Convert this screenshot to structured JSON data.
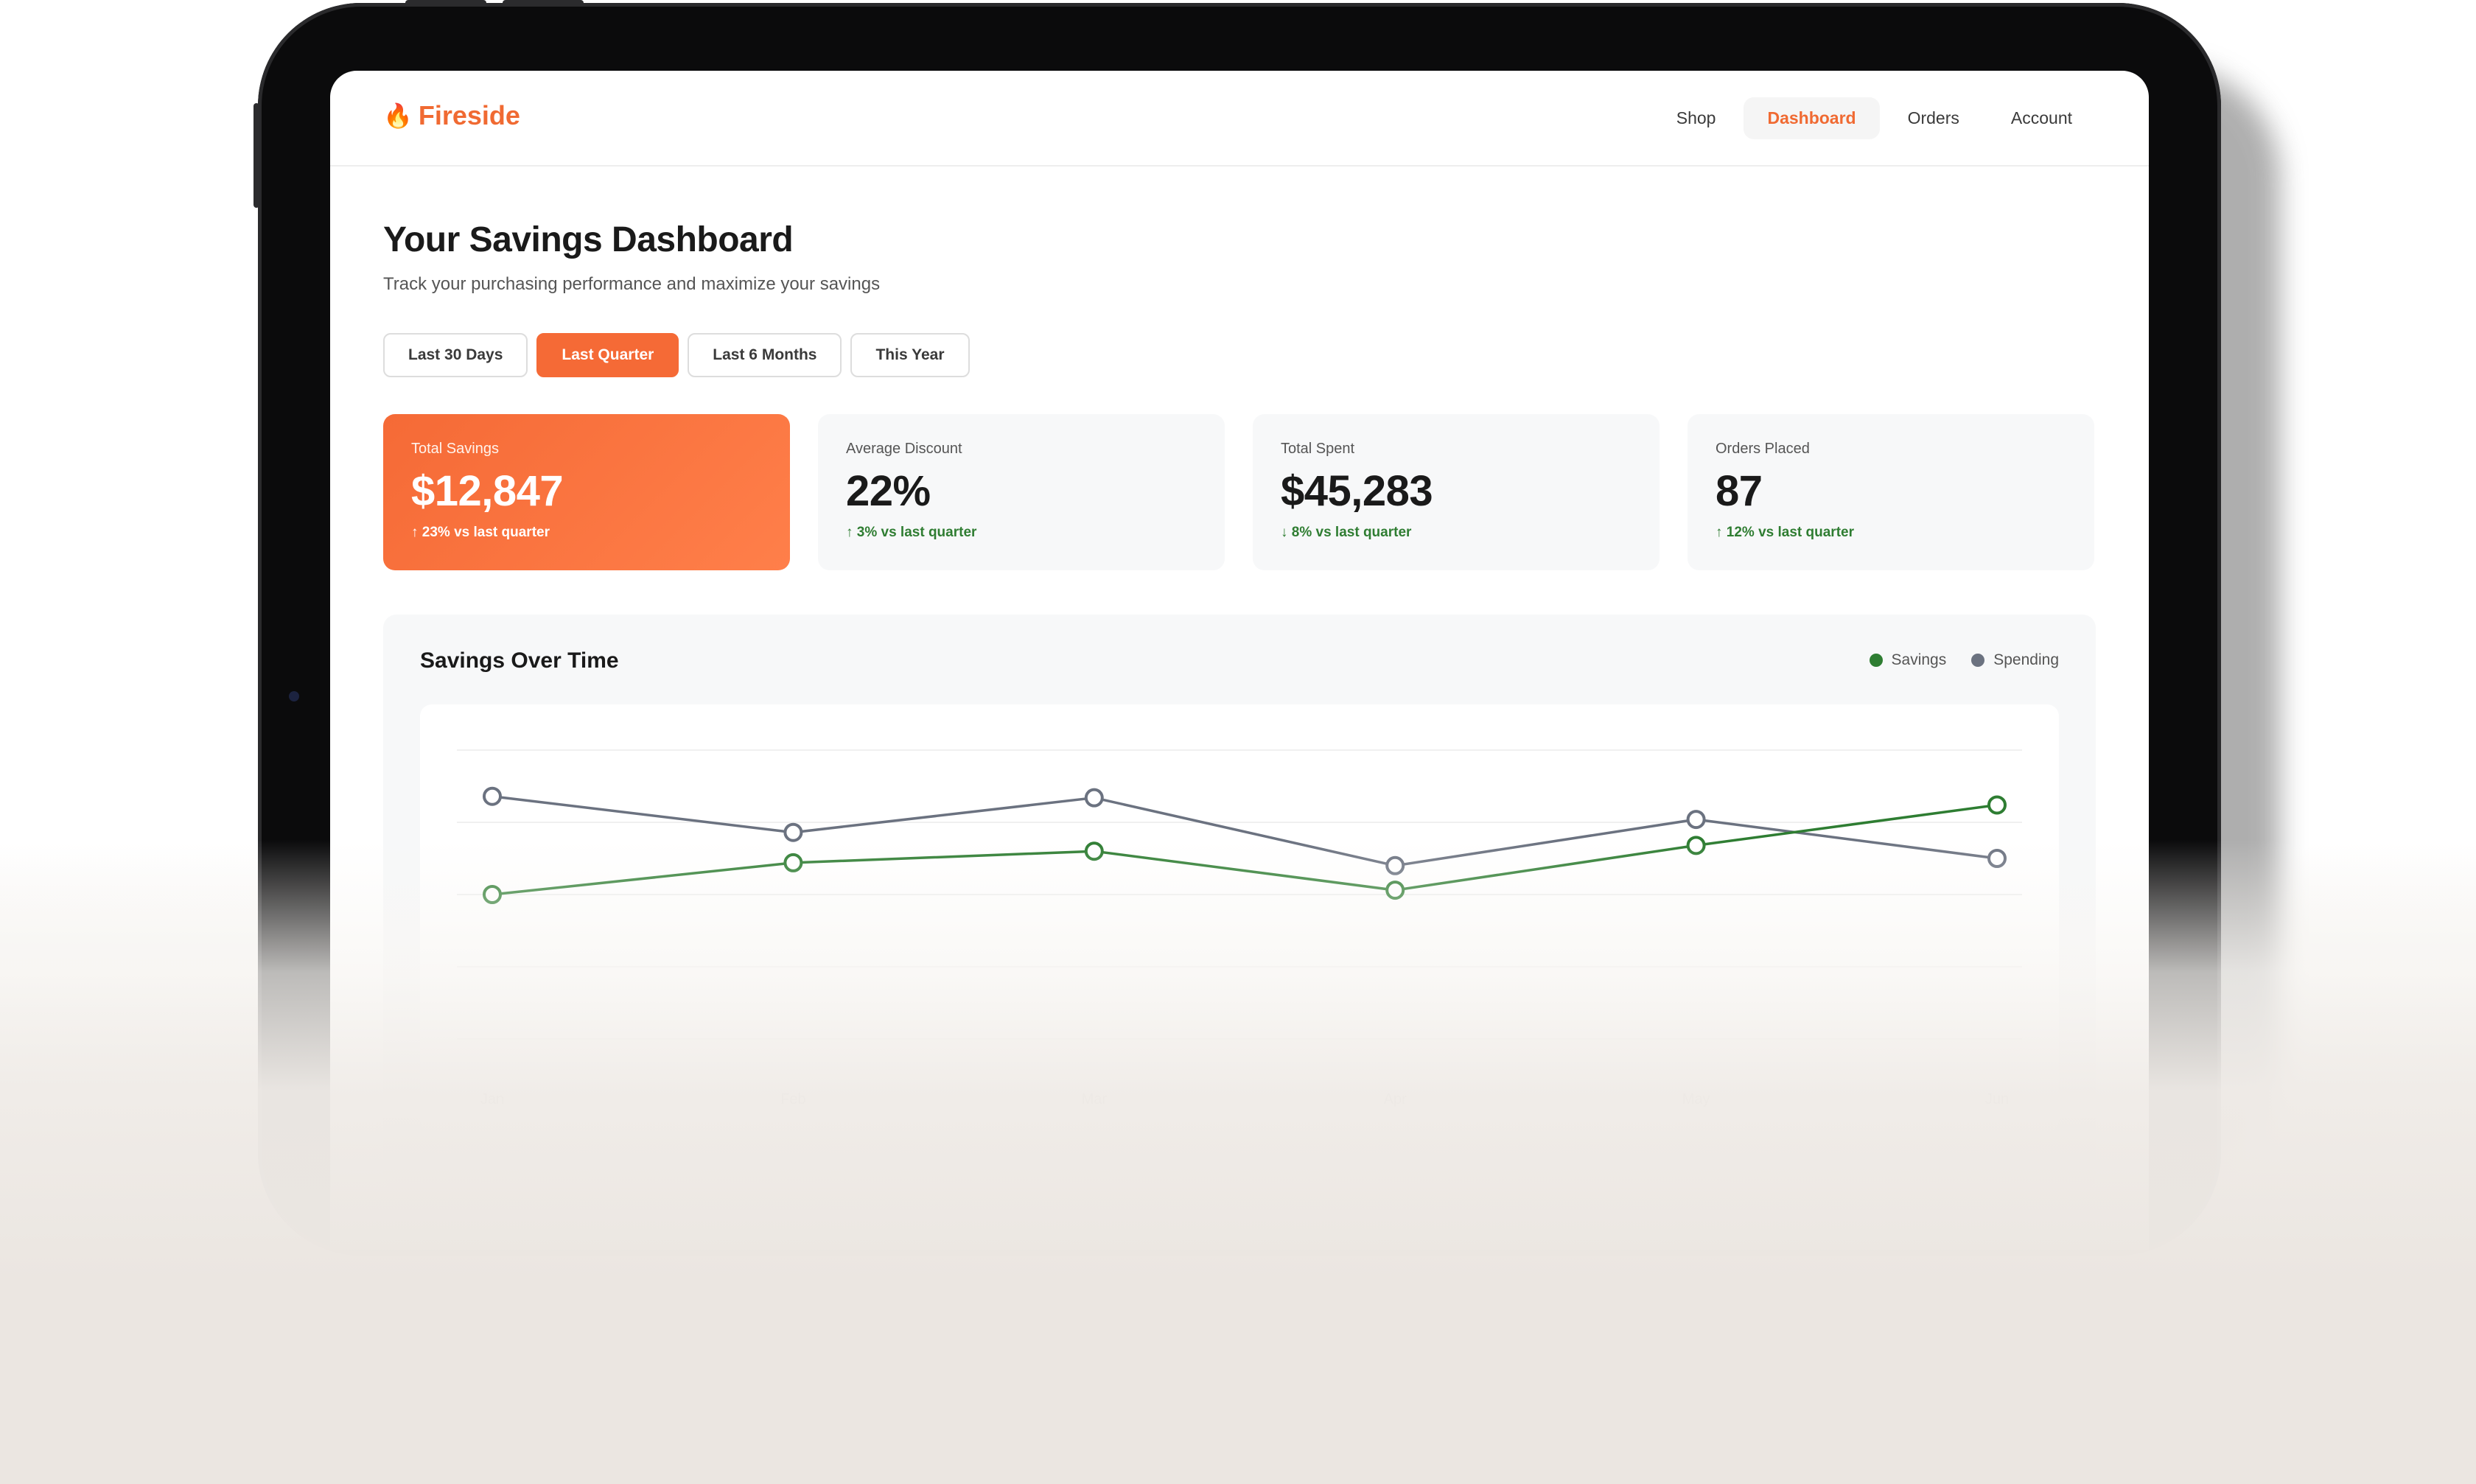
{
  "app": {
    "logo_text": "Fireside",
    "logo_icon": "flame-icon",
    "accent_color": "#f06a32"
  },
  "nav": {
    "items": [
      {
        "label": "Shop",
        "active": false
      },
      {
        "label": "Dashboard",
        "active": true
      },
      {
        "label": "Orders",
        "active": false
      },
      {
        "label": "Account",
        "active": false
      }
    ]
  },
  "header": {
    "title": "Your Savings Dashboard",
    "subtitle": "Track your purchasing performance and maximize your savings"
  },
  "filters": {
    "options": [
      "Last 30 Days",
      "Last Quarter",
      "Last 6 Months",
      "This Year"
    ],
    "selected": "Last Quarter"
  },
  "stats": [
    {
      "label": "Total Savings",
      "value": "$12,847",
      "delta": "↑ 23% vs last quarter",
      "highlight": true
    },
    {
      "label": "Average Discount",
      "value": "22%",
      "delta": "↑ 3% vs last quarter",
      "highlight": false
    },
    {
      "label": "Total Spent",
      "value": "$45,283",
      "delta": "↓ 8% vs last quarter",
      "highlight": false
    },
    {
      "label": "Orders Placed",
      "value": "87",
      "delta": "↑ 12% vs last quarter",
      "highlight": false
    }
  ],
  "chart_panel": {
    "title": "Savings Over Time"
  },
  "chart_data": {
    "type": "line",
    "title": "Savings Over Time",
    "xlabel": "",
    "ylabel": "",
    "categories": [
      "Jan",
      "Feb",
      "Mar",
      "Apr",
      "May",
      "Jun"
    ],
    "series": [
      {
        "name": "Savings",
        "color": "#2e7d32",
        "values": [
          10.0,
          12.2,
          13.0,
          10.3,
          13.4,
          16.2
        ]
      },
      {
        "name": "Spending",
        "color": "#6b7280",
        "values": [
          16.8,
          14.3,
          16.7,
          12.0,
          15.2,
          12.5
        ]
      }
    ],
    "ylim": [
      0,
      20
    ],
    "grid": true,
    "legend": "top-right"
  }
}
